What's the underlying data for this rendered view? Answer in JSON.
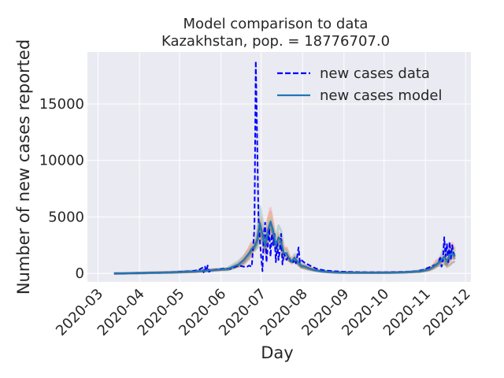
{
  "chart_data": {
    "type": "line",
    "title_line1": "Model comparison to data",
    "title_line2": "Kazakhstan, pop. = 18776707.0",
    "xlabel": "Day",
    "ylabel": "Number of new cases reported",
    "x_ticks": [
      "2020-03",
      "2020-04",
      "2020-05",
      "2020-06",
      "2020-07",
      "2020-08",
      "2020-09",
      "2020-10",
      "2020-11",
      "2020-12"
    ],
    "y_ticks": [
      0,
      5000,
      10000,
      15000
    ],
    "xlim": [
      "2020-02-22",
      "2020-12-05"
    ],
    "ylim": [
      -750,
      19600
    ],
    "grid": true,
    "legend": {
      "placement": "top-right"
    },
    "colors": {
      "data": "#0000ff",
      "model": "#1f77b4",
      "background": "#eaeaf2",
      "envelope": [
        "#e49444",
        "#d1615d",
        "#85b6b2",
        "#6a9f58",
        "#e7ca60",
        "#a87c9f",
        "#f1a2a9",
        "#967662",
        "#b8b0ac",
        "#5778a4"
      ]
    },
    "series": [
      {
        "name": "new cases data",
        "style": "dashed",
        "x": [
          "2020-03-13",
          "2020-03-20",
          "2020-03-27",
          "2020-04-03",
          "2020-04-10",
          "2020-04-17",
          "2020-04-24",
          "2020-05-01",
          "2020-05-05",
          "2020-05-10",
          "2020-05-15",
          "2020-05-18",
          "2020-05-19",
          "2020-05-20",
          "2020-05-21",
          "2020-05-22",
          "2020-05-23",
          "2020-05-25",
          "2020-05-28",
          "2020-06-01",
          "2020-06-05",
          "2020-06-08",
          "2020-06-10",
          "2020-06-12",
          "2020-06-14",
          "2020-06-16",
          "2020-06-18",
          "2020-06-20",
          "2020-06-22",
          "2020-06-24",
          "2020-06-26",
          "2020-06-27",
          "2020-06-28",
          "2020-06-29",
          "2020-06-30",
          "2020-07-01",
          "2020-07-02",
          "2020-07-03",
          "2020-07-04",
          "2020-07-05",
          "2020-07-06",
          "2020-07-07",
          "2020-07-08",
          "2020-07-09",
          "2020-07-10",
          "2020-07-11",
          "2020-07-12",
          "2020-07-13",
          "2020-07-14",
          "2020-07-15",
          "2020-07-16",
          "2020-07-17",
          "2020-07-18",
          "2020-07-19",
          "2020-07-20",
          "2020-07-21",
          "2020-07-22",
          "2020-07-23",
          "2020-07-24",
          "2020-07-25",
          "2020-07-26",
          "2020-07-27",
          "2020-07-28",
          "2020-07-29",
          "2020-07-30",
          "2020-07-31",
          "2020-08-01",
          "2020-08-02",
          "2020-08-03",
          "2020-08-05",
          "2020-08-08",
          "2020-08-12",
          "2020-08-16",
          "2020-08-20",
          "2020-08-25",
          "2020-09-01",
          "2020-09-10",
          "2020-09-20",
          "2020-10-01",
          "2020-10-10",
          "2020-10-20",
          "2020-10-25",
          "2020-10-30",
          "2020-11-01",
          "2020-11-03",
          "2020-11-05",
          "2020-11-07",
          "2020-11-09",
          "2020-11-10",
          "2020-11-11",
          "2020-11-12",
          "2020-11-13",
          "2020-11-14",
          "2020-11-15",
          "2020-11-16",
          "2020-11-17",
          "2020-11-18",
          "2020-11-19",
          "2020-11-20",
          "2020-11-21",
          "2020-11-22",
          "2020-11-23"
        ],
        "y": [
          5,
          10,
          20,
          40,
          60,
          80,
          100,
          150,
          180,
          200,
          300,
          500,
          100,
          600,
          200,
          700,
          150,
          300,
          350,
          400,
          450,
          400,
          500,
          600,
          700,
          650,
          600,
          550,
          700,
          600,
          4000,
          18800,
          12000,
          5000,
          3000,
          1500,
          200,
          3500,
          4500,
          1000,
          2500,
          4000,
          1500,
          3500,
          2500,
          3500,
          1000,
          2800,
          1200,
          2000,
          3500,
          800,
          1800,
          1500,
          1200,
          1400,
          1500,
          1100,
          1300,
          1000,
          1200,
          900,
          1500,
          2300,
          1000,
          1200,
          1100,
          1000,
          900,
          800,
          600,
          400,
          300,
          250,
          200,
          150,
          120,
          100,
          100,
          120,
          150,
          200,
          300,
          400,
          500,
          600,
          700,
          800,
          900,
          1000,
          1500,
          600,
          1200,
          3200,
          1500,
          2600,
          900,
          2800,
          1300,
          2500,
          1800,
          1500
        ]
      },
      {
        "name": "new cases model",
        "style": "solid",
        "x": [
          "2020-03-13",
          "2020-03-25",
          "2020-04-05",
          "2020-04-15",
          "2020-04-25",
          "2020-05-05",
          "2020-05-12",
          "2020-05-20",
          "2020-05-26",
          "2020-06-01",
          "2020-06-06",
          "2020-06-10",
          "2020-06-14",
          "2020-06-18",
          "2020-06-22",
          "2020-06-24",
          "2020-06-26",
          "2020-06-28",
          "2020-06-30",
          "2020-07-02",
          "2020-07-04",
          "2020-07-06",
          "2020-07-08",
          "2020-07-10",
          "2020-07-12",
          "2020-07-14",
          "2020-07-16",
          "2020-07-18",
          "2020-07-20",
          "2020-07-22",
          "2020-07-24",
          "2020-07-26",
          "2020-07-28",
          "2020-07-31",
          "2020-08-03",
          "2020-08-06",
          "2020-08-10",
          "2020-08-15",
          "2020-08-20",
          "2020-08-27",
          "2020-09-05",
          "2020-09-15",
          "2020-09-25",
          "2020-10-05",
          "2020-10-15",
          "2020-10-22",
          "2020-10-28",
          "2020-11-01",
          "2020-11-04",
          "2020-11-07",
          "2020-11-09",
          "2020-11-11",
          "2020-11-13",
          "2020-11-15",
          "2020-11-17",
          "2020-11-19",
          "2020-11-21",
          "2020-11-23"
        ],
        "y": [
          5,
          20,
          50,
          80,
          100,
          150,
          180,
          250,
          300,
          350,
          400,
          600,
          800,
          1200,
          1800,
          2200,
          2400,
          3000,
          4500,
          3500,
          2500,
          3800,
          4600,
          3800,
          2500,
          3200,
          2800,
          1800,
          1800,
          1300,
          1100,
          1400,
          1100,
          700,
          600,
          450,
          300,
          200,
          150,
          100,
          80,
          70,
          70,
          80,
          100,
          150,
          200,
          300,
          400,
          600,
          800,
          1000,
          1200,
          1500,
          1100,
          1600,
          1800,
          1500
        ]
      }
    ]
  }
}
